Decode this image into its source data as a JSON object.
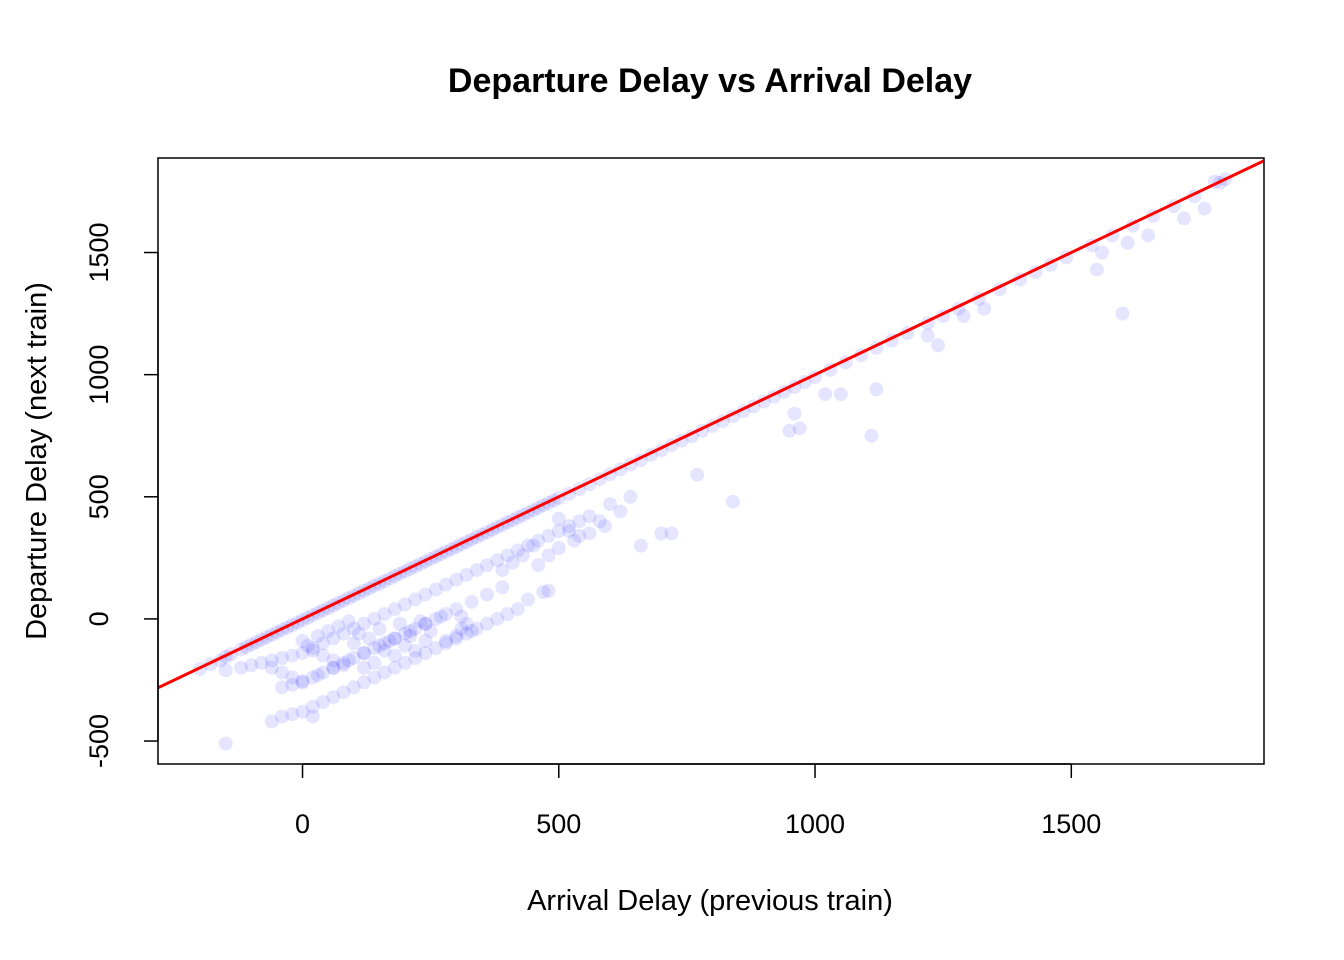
{
  "chart_data": {
    "type": "scatter",
    "title": "Departure Delay vs Arrival Delay",
    "xlabel": "Arrival Delay (previous train)",
    "ylabel": "Departure Delay (next train)",
    "xlim": [
      -282,
      1876
    ],
    "ylim": [
      -594,
      1887
    ],
    "x_ticks": [
      0,
      500,
      1000,
      1500
    ],
    "y_ticks": [
      -500,
      0,
      500,
      1000,
      1500
    ],
    "x_tick_labels": [
      "0",
      "500",
      "1000",
      "1500"
    ],
    "y_tick_labels": [
      "-500",
      "0",
      "500",
      "1000",
      "1500"
    ],
    "grid": false,
    "point_color": "#0000ff",
    "point_opacity": 0.1,
    "reference_line": {
      "color": "#ff0000",
      "slope": 1.0,
      "intercept": 0
    },
    "series": [
      {
        "points": [
          [
            -200,
            -205
          ],
          [
            -180,
            -185
          ],
          [
            -160,
            -170
          ],
          [
            -150,
            -155
          ],
          [
            -140,
            -145
          ],
          [
            -120,
            -125
          ],
          [
            -110,
            -115
          ],
          [
            -100,
            -105
          ],
          [
            -90,
            -95
          ],
          [
            -80,
            -85
          ],
          [
            -70,
            -75
          ],
          [
            -60,
            -65
          ],
          [
            -50,
            -55
          ],
          [
            -40,
            -45
          ],
          [
            -30,
            -35
          ],
          [
            -20,
            -25
          ],
          [
            -10,
            -15
          ],
          [
            0,
            -5
          ],
          [
            10,
            5
          ],
          [
            20,
            15
          ],
          [
            30,
            25
          ],
          [
            40,
            35
          ],
          [
            50,
            45
          ],
          [
            60,
            55
          ],
          [
            70,
            65
          ],
          [
            80,
            75
          ],
          [
            90,
            85
          ],
          [
            100,
            95
          ],
          [
            110,
            105
          ],
          [
            120,
            115
          ],
          [
            130,
            125
          ],
          [
            140,
            135
          ],
          [
            150,
            145
          ],
          [
            160,
            155
          ],
          [
            170,
            165
          ],
          [
            180,
            175
          ],
          [
            190,
            185
          ],
          [
            200,
            195
          ],
          [
            210,
            205
          ],
          [
            220,
            215
          ],
          [
            230,
            225
          ],
          [
            240,
            235
          ],
          [
            250,
            245
          ],
          [
            260,
            255
          ],
          [
            270,
            265
          ],
          [
            280,
            275
          ],
          [
            290,
            285
          ],
          [
            300,
            295
          ],
          [
            310,
            305
          ],
          [
            320,
            315
          ],
          [
            330,
            325
          ],
          [
            340,
            335
          ],
          [
            350,
            345
          ],
          [
            360,
            355
          ],
          [
            370,
            365
          ],
          [
            380,
            375
          ],
          [
            390,
            385
          ],
          [
            400,
            395
          ],
          [
            410,
            405
          ],
          [
            420,
            415
          ],
          [
            430,
            425
          ],
          [
            440,
            435
          ],
          [
            450,
            445
          ],
          [
            460,
            455
          ],
          [
            470,
            465
          ],
          [
            480,
            475
          ],
          [
            490,
            485
          ],
          [
            500,
            495
          ],
          [
            520,
            512
          ],
          [
            540,
            532
          ],
          [
            560,
            552
          ],
          [
            580,
            572
          ],
          [
            600,
            592
          ],
          [
            620,
            612
          ],
          [
            640,
            632
          ],
          [
            660,
            650
          ],
          [
            680,
            672
          ],
          [
            700,
            690
          ],
          [
            720,
            712
          ],
          [
            740,
            730
          ],
          [
            760,
            748
          ],
          [
            780,
            770
          ],
          [
            800,
            790
          ],
          [
            820,
            810
          ],
          [
            840,
            830
          ],
          [
            860,
            850
          ],
          [
            880,
            870
          ],
          [
            900,
            890
          ],
          [
            920,
            910
          ],
          [
            940,
            930
          ],
          [
            960,
            950
          ],
          [
            980,
            970
          ],
          [
            1000,
            990
          ],
          [
            1030,
            1020
          ],
          [
            1060,
            1050
          ],
          [
            1090,
            1080
          ],
          [
            1120,
            1110
          ],
          [
            1150,
            1140
          ],
          [
            1180,
            1170
          ],
          [
            1220,
            1210
          ],
          [
            1250,
            1240
          ],
          [
            1280,
            1270
          ],
          [
            1320,
            1310
          ],
          [
            1360,
            1350
          ],
          [
            1400,
            1390
          ],
          [
            1430,
            1420
          ],
          [
            1460,
            1450
          ],
          [
            1490,
            1480
          ],
          [
            1540,
            1530
          ],
          [
            1580,
            1570
          ],
          [
            1620,
            1610
          ],
          [
            1660,
            1650
          ],
          [
            1700,
            1690
          ],
          [
            1740,
            1730
          ],
          [
            1790,
            1785
          ],
          [
            -150,
            -210
          ],
          [
            -120,
            -200
          ],
          [
            -100,
            -190
          ],
          [
            -80,
            -180
          ],
          [
            -60,
            -170
          ],
          [
            -40,
            -160
          ],
          [
            -20,
            -150
          ],
          [
            0,
            -140
          ],
          [
            20,
            -120
          ],
          [
            40,
            -100
          ],
          [
            60,
            -80
          ],
          [
            80,
            -60
          ],
          [
            100,
            -40
          ],
          [
            120,
            -20
          ],
          [
            140,
            0
          ],
          [
            160,
            20
          ],
          [
            180,
            40
          ],
          [
            200,
            60
          ],
          [
            220,
            80
          ],
          [
            240,
            100
          ],
          [
            260,
            120
          ],
          [
            280,
            140
          ],
          [
            300,
            160
          ],
          [
            320,
            180
          ],
          [
            340,
            200
          ],
          [
            360,
            220
          ],
          [
            380,
            240
          ],
          [
            400,
            260
          ],
          [
            420,
            280
          ],
          [
            440,
            300
          ],
          [
            460,
            320
          ],
          [
            480,
            340
          ],
          [
            500,
            360
          ],
          [
            520,
            380
          ],
          [
            540,
            400
          ],
          [
            -60,
            -200
          ],
          [
            -40,
            -220
          ],
          [
            -20,
            -240
          ],
          [
            0,
            -260
          ],
          [
            20,
            -240
          ],
          [
            40,
            -220
          ],
          [
            60,
            -200
          ],
          [
            80,
            -180
          ],
          [
            100,
            -160
          ],
          [
            120,
            -140
          ],
          [
            140,
            -120
          ],
          [
            160,
            -100
          ],
          [
            180,
            -80
          ],
          [
            200,
            -60
          ],
          [
            220,
            -40
          ],
          [
            240,
            -20
          ],
          [
            260,
            0
          ],
          [
            280,
            20
          ],
          [
            -40,
            -280
          ],
          [
            -20,
            -270
          ],
          [
            0,
            -255
          ],
          [
            30,
            -230
          ],
          [
            60,
            -200
          ],
          [
            90,
            -170
          ],
          [
            120,
            -140
          ],
          [
            150,
            -110
          ],
          [
            180,
            -80
          ],
          [
            210,
            -50
          ],
          [
            240,
            -20
          ],
          [
            270,
            10
          ],
          [
            300,
            40
          ],
          [
            330,
            70
          ],
          [
            360,
            100
          ],
          [
            390,
            130
          ],
          [
            -60,
            -420
          ],
          [
            -40,
            -400
          ],
          [
            -20,
            -390
          ],
          [
            0,
            -380
          ],
          [
            20,
            -360
          ],
          [
            40,
            -340
          ],
          [
            60,
            -320
          ],
          [
            80,
            -300
          ],
          [
            100,
            -280
          ],
          [
            120,
            -260
          ],
          [
            140,
            -240
          ],
          [
            160,
            -220
          ],
          [
            180,
            -200
          ],
          [
            200,
            -180
          ],
          [
            220,
            -160
          ],
          [
            240,
            -140
          ],
          [
            260,
            -120
          ],
          [
            280,
            -100
          ],
          [
            300,
            -80
          ],
          [
            320,
            -60
          ],
          [
            340,
            -40
          ],
          [
            360,
            -20
          ],
          [
            380,
            0
          ],
          [
            400,
            20
          ],
          [
            420,
            40
          ],
          [
            0,
            -90
          ],
          [
            10,
            -110
          ],
          [
            20,
            -130
          ],
          [
            30,
            -70
          ],
          [
            40,
            -150
          ],
          [
            50,
            -50
          ],
          [
            60,
            -170
          ],
          [
            70,
            -30
          ],
          [
            80,
            -190
          ],
          [
            90,
            -10
          ],
          [
            100,
            -100
          ],
          [
            110,
            -60
          ],
          [
            120,
            -200
          ],
          [
            130,
            -80
          ],
          [
            140,
            -180
          ],
          [
            150,
            -40
          ],
          [
            160,
            -130
          ],
          [
            170,
            -90
          ],
          [
            180,
            -150
          ],
          [
            190,
            -20
          ],
          [
            200,
            -110
          ],
          [
            210,
            -70
          ],
          [
            220,
            -130
          ],
          [
            230,
            -10
          ],
          [
            240,
            -90
          ],
          [
            250,
            -50
          ],
          [
            -150,
            -510
          ],
          [
            20,
            -400
          ],
          [
            310,
            -40
          ],
          [
            320,
            -20
          ],
          [
            330,
            -50
          ],
          [
            300,
            -70
          ],
          [
            280,
            -90
          ],
          [
            310,
            10
          ],
          [
            470,
            110
          ],
          [
            440,
            80
          ],
          [
            480,
            115
          ],
          [
            660,
            300
          ],
          [
            700,
            350
          ],
          [
            720,
            350
          ],
          [
            840,
            480
          ],
          [
            770,
            590
          ],
          [
            950,
            770
          ],
          [
            960,
            840
          ],
          [
            970,
            780
          ],
          [
            1020,
            920
          ],
          [
            1050,
            920
          ],
          [
            1110,
            750
          ],
          [
            1120,
            940
          ],
          [
            1240,
            1120
          ],
          [
            1220,
            1160
          ],
          [
            1290,
            1240
          ],
          [
            1330,
            1270
          ],
          [
            1550,
            1430
          ],
          [
            1560,
            1500
          ],
          [
            1600,
            1250
          ],
          [
            1610,
            1540
          ],
          [
            1650,
            1570
          ],
          [
            1720,
            1640
          ],
          [
            1760,
            1680
          ],
          [
            1780,
            1790
          ],
          [
            1800,
            1800
          ],
          [
            500,
            410
          ],
          [
            560,
            420
          ],
          [
            580,
            400
          ],
          [
            620,
            440
          ],
          [
            600,
            470
          ],
          [
            640,
            500
          ],
          [
            520,
            360
          ],
          [
            540,
            340
          ],
          [
            450,
            300
          ],
          [
            430,
            260
          ],
          [
            410,
            230
          ],
          [
            390,
            200
          ],
          [
            480,
            260
          ],
          [
            460,
            220
          ],
          [
            500,
            290
          ],
          [
            530,
            320
          ],
          [
            560,
            350
          ],
          [
            590,
            380
          ]
        ]
      }
    ]
  }
}
